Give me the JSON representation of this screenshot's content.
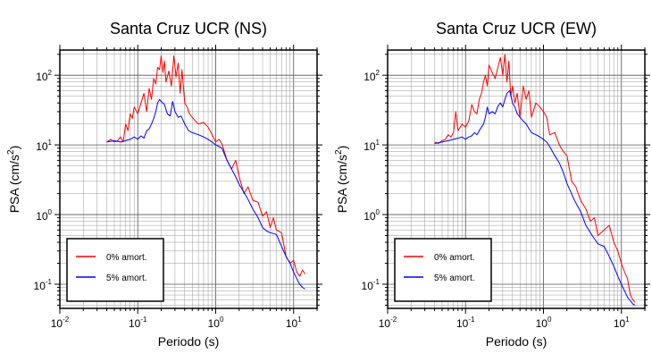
{
  "charts": [
    {
      "type": "line",
      "title": "Santa Cruz UCR (NS)",
      "xlabel": "Periodo (s)",
      "ylabel_main": "PSA (cm/s",
      "ylabel_sup": "2",
      "ylabel_end": ")",
      "x_scale": "log",
      "y_scale": "log",
      "xlim": [
        0.01,
        20
      ],
      "ylim": [
        0.045,
        230
      ],
      "x_ticks": [
        {
          "value": 0.01,
          "base": "10",
          "exp": "-2"
        },
        {
          "value": 0.1,
          "base": "10",
          "exp": "-1"
        },
        {
          "value": 1,
          "base": "10",
          "exp": "0"
        },
        {
          "value": 10,
          "base": "10",
          "exp": "1"
        }
      ],
      "y_ticks": [
        {
          "value": 0.1,
          "base": "10",
          "exp": "-1"
        },
        {
          "value": 1,
          "base": "10",
          "exp": "0"
        },
        {
          "value": 10,
          "base": "10",
          "exp": "1"
        },
        {
          "value": 100,
          "base": "10",
          "exp": "2"
        }
      ],
      "grid": true,
      "legend_position": "bottom-left",
      "series": [
        {
          "name": "0% amort.",
          "color": "#ff0000",
          "x": [
            0.04,
            0.045,
            0.05,
            0.055,
            0.06,
            0.065,
            0.07,
            0.075,
            0.08,
            0.085,
            0.09,
            0.1,
            0.11,
            0.12,
            0.13,
            0.14,
            0.15,
            0.16,
            0.17,
            0.18,
            0.19,
            0.2,
            0.21,
            0.22,
            0.23,
            0.25,
            0.27,
            0.29,
            0.31,
            0.33,
            0.35,
            0.37,
            0.4,
            0.43,
            0.46,
            0.5,
            0.55,
            0.6,
            0.7,
            0.8,
            0.9,
            1.0,
            1.1,
            1.2,
            1.4,
            1.6,
            1.8,
            2.0,
            2.3,
            2.6,
            3.0,
            3.5,
            4.0,
            4.5,
            5.0,
            5.5,
            6.0,
            7.0,
            8.0,
            9.0,
            10.0,
            11.0,
            12.0,
            13.0,
            14.0
          ],
          "y": [
            11,
            12,
            11,
            11.5,
            13,
            11,
            20,
            16,
            28,
            24,
            35,
            28,
            40,
            55,
            30,
            65,
            45,
            90,
            75,
            130,
            120,
            190,
            110,
            160,
            80,
            115,
            70,
            190,
            95,
            150,
            55,
            120,
            40,
            35,
            28,
            25,
            22,
            20,
            21,
            18,
            14,
            11,
            12,
            10.5,
            6,
            4.5,
            6,
            3.5,
            2,
            2.5,
            1.6,
            1.5,
            0.95,
            1.1,
            0.65,
            0.9,
            0.6,
            0.55,
            0.25,
            0.2,
            0.22,
            0.15,
            0.13,
            0.16,
            0.14
          ]
        },
        {
          "name": "5% amort.",
          "color": "#0000ff",
          "x": [
            0.04,
            0.05,
            0.06,
            0.07,
            0.08,
            0.09,
            0.1,
            0.11,
            0.12,
            0.13,
            0.14,
            0.15,
            0.16,
            0.17,
            0.18,
            0.19,
            0.2,
            0.22,
            0.24,
            0.26,
            0.28,
            0.3,
            0.33,
            0.36,
            0.4,
            0.45,
            0.5,
            0.6,
            0.7,
            0.8,
            0.9,
            1.0,
            1.1,
            1.2,
            1.4,
            1.6,
            1.8,
            2.0,
            2.5,
            3.0,
            3.5,
            4.0,
            4.5,
            5.0,
            6.0,
            7.0,
            8.0,
            9.0,
            10.0,
            11.0,
            12.0,
            13.0,
            14.0
          ],
          "y": [
            11,
            11.5,
            11,
            11.5,
            12,
            13,
            12,
            13.5,
            12.5,
            16,
            17,
            20,
            24,
            30,
            40,
            45,
            42,
            38,
            28,
            26,
            42,
            30,
            25,
            26,
            20,
            16,
            15,
            14,
            13,
            12,
            11,
            10,
            9.5,
            9,
            6,
            4.5,
            3.5,
            2.7,
            1.8,
            1.2,
            0.9,
            0.65,
            0.58,
            0.55,
            0.52,
            0.35,
            0.25,
            0.2,
            0.15,
            0.12,
            0.1,
            0.09,
            0.085
          ]
        }
      ]
    },
    {
      "type": "line",
      "title": "Santa Cruz UCR (EW)",
      "xlabel": "Periodo (s)",
      "ylabel_main": "PSA (cm/s",
      "ylabel_sup": "2",
      "ylabel_end": ")",
      "x_scale": "log",
      "y_scale": "log",
      "xlim": [
        0.01,
        20
      ],
      "ylim": [
        0.045,
        230
      ],
      "x_ticks": [
        {
          "value": 0.01,
          "base": "10",
          "exp": "-2"
        },
        {
          "value": 0.1,
          "base": "10",
          "exp": "-1"
        },
        {
          "value": 1,
          "base": "10",
          "exp": "0"
        },
        {
          "value": 10,
          "base": "10",
          "exp": "1"
        }
      ],
      "y_ticks": [
        {
          "value": 0.1,
          "base": "10",
          "exp": "-1"
        },
        {
          "value": 1,
          "base": "10",
          "exp": "0"
        },
        {
          "value": 10,
          "base": "10",
          "exp": "1"
        },
        {
          "value": 100,
          "base": "10",
          "exp": "2"
        }
      ],
      "grid": true,
      "legend_position": "bottom-left",
      "series": [
        {
          "name": "0% amort.",
          "color": "#ff0000",
          "x": [
            0.04,
            0.045,
            0.05,
            0.055,
            0.06,
            0.065,
            0.07,
            0.075,
            0.08,
            0.09,
            0.1,
            0.11,
            0.12,
            0.13,
            0.14,
            0.15,
            0.16,
            0.17,
            0.18,
            0.19,
            0.2,
            0.22,
            0.24,
            0.26,
            0.28,
            0.3,
            0.32,
            0.34,
            0.36,
            0.38,
            0.4,
            0.43,
            0.46,
            0.5,
            0.55,
            0.6,
            0.65,
            0.7,
            0.8,
            0.9,
            1.0,
            1.1,
            1.2,
            1.4,
            1.6,
            1.8,
            2.0,
            2.3,
            2.6,
            3.0,
            3.5,
            4.0,
            4.5,
            5.0,
            6.0,
            7.0,
            8.0,
            9.0,
            10.0,
            11.0,
            12.0,
            13.0,
            14.0,
            15.0
          ],
          "y": [
            11,
            10.5,
            11.5,
            12,
            14,
            13,
            15,
            30,
            16,
            20,
            18,
            22,
            38,
            30,
            28,
            45,
            55,
            80,
            100,
            70,
            140,
            110,
            90,
            130,
            180,
            100,
            200,
            80,
            160,
            50,
            70,
            40,
            55,
            25,
            70,
            45,
            60,
            25,
            40,
            35,
            30,
            25,
            14,
            15,
            10,
            8,
            7,
            3,
            2.5,
            1.6,
            1.2,
            0.8,
            0.9,
            0.5,
            0.6,
            0.7,
            0.4,
            0.3,
            0.2,
            0.15,
            0.12,
            0.07,
            0.06,
            0.055
          ]
        },
        {
          "name": "5% amort.",
          "color": "#0000ff",
          "x": [
            0.04,
            0.05,
            0.06,
            0.07,
            0.08,
            0.09,
            0.1,
            0.11,
            0.12,
            0.13,
            0.14,
            0.15,
            0.16,
            0.17,
            0.18,
            0.19,
            0.2,
            0.22,
            0.24,
            0.26,
            0.28,
            0.3,
            0.32,
            0.34,
            0.37,
            0.4,
            0.43,
            0.46,
            0.5,
            0.55,
            0.6,
            0.7,
            0.8,
            0.9,
            1.0,
            1.1,
            1.2,
            1.4,
            1.6,
            1.8,
            2.0,
            2.5,
            3.0,
            3.5,
            4.0,
            4.5,
            5.0,
            6.0,
            7.0,
            8.0,
            9.0,
            10.0,
            11.0,
            12.0,
            13.0,
            14.0,
            15.0
          ],
          "y": [
            10.5,
            11,
            11.5,
            12,
            12.5,
            13,
            12,
            13,
            13.5,
            15,
            14,
            16,
            18,
            20,
            25,
            35,
            28,
            30,
            28,
            36,
            40,
            35,
            45,
            55,
            60,
            40,
            35,
            28,
            25,
            22,
            20,
            15,
            14,
            13,
            12,
            11,
            9.5,
            7,
            5.5,
            4,
            2.8,
            1.6,
            1.1,
            0.7,
            0.55,
            0.45,
            0.38,
            0.35,
            0.25,
            0.18,
            0.13,
            0.1,
            0.08,
            0.065,
            0.058,
            0.052,
            0.05
          ]
        }
      ]
    }
  ]
}
